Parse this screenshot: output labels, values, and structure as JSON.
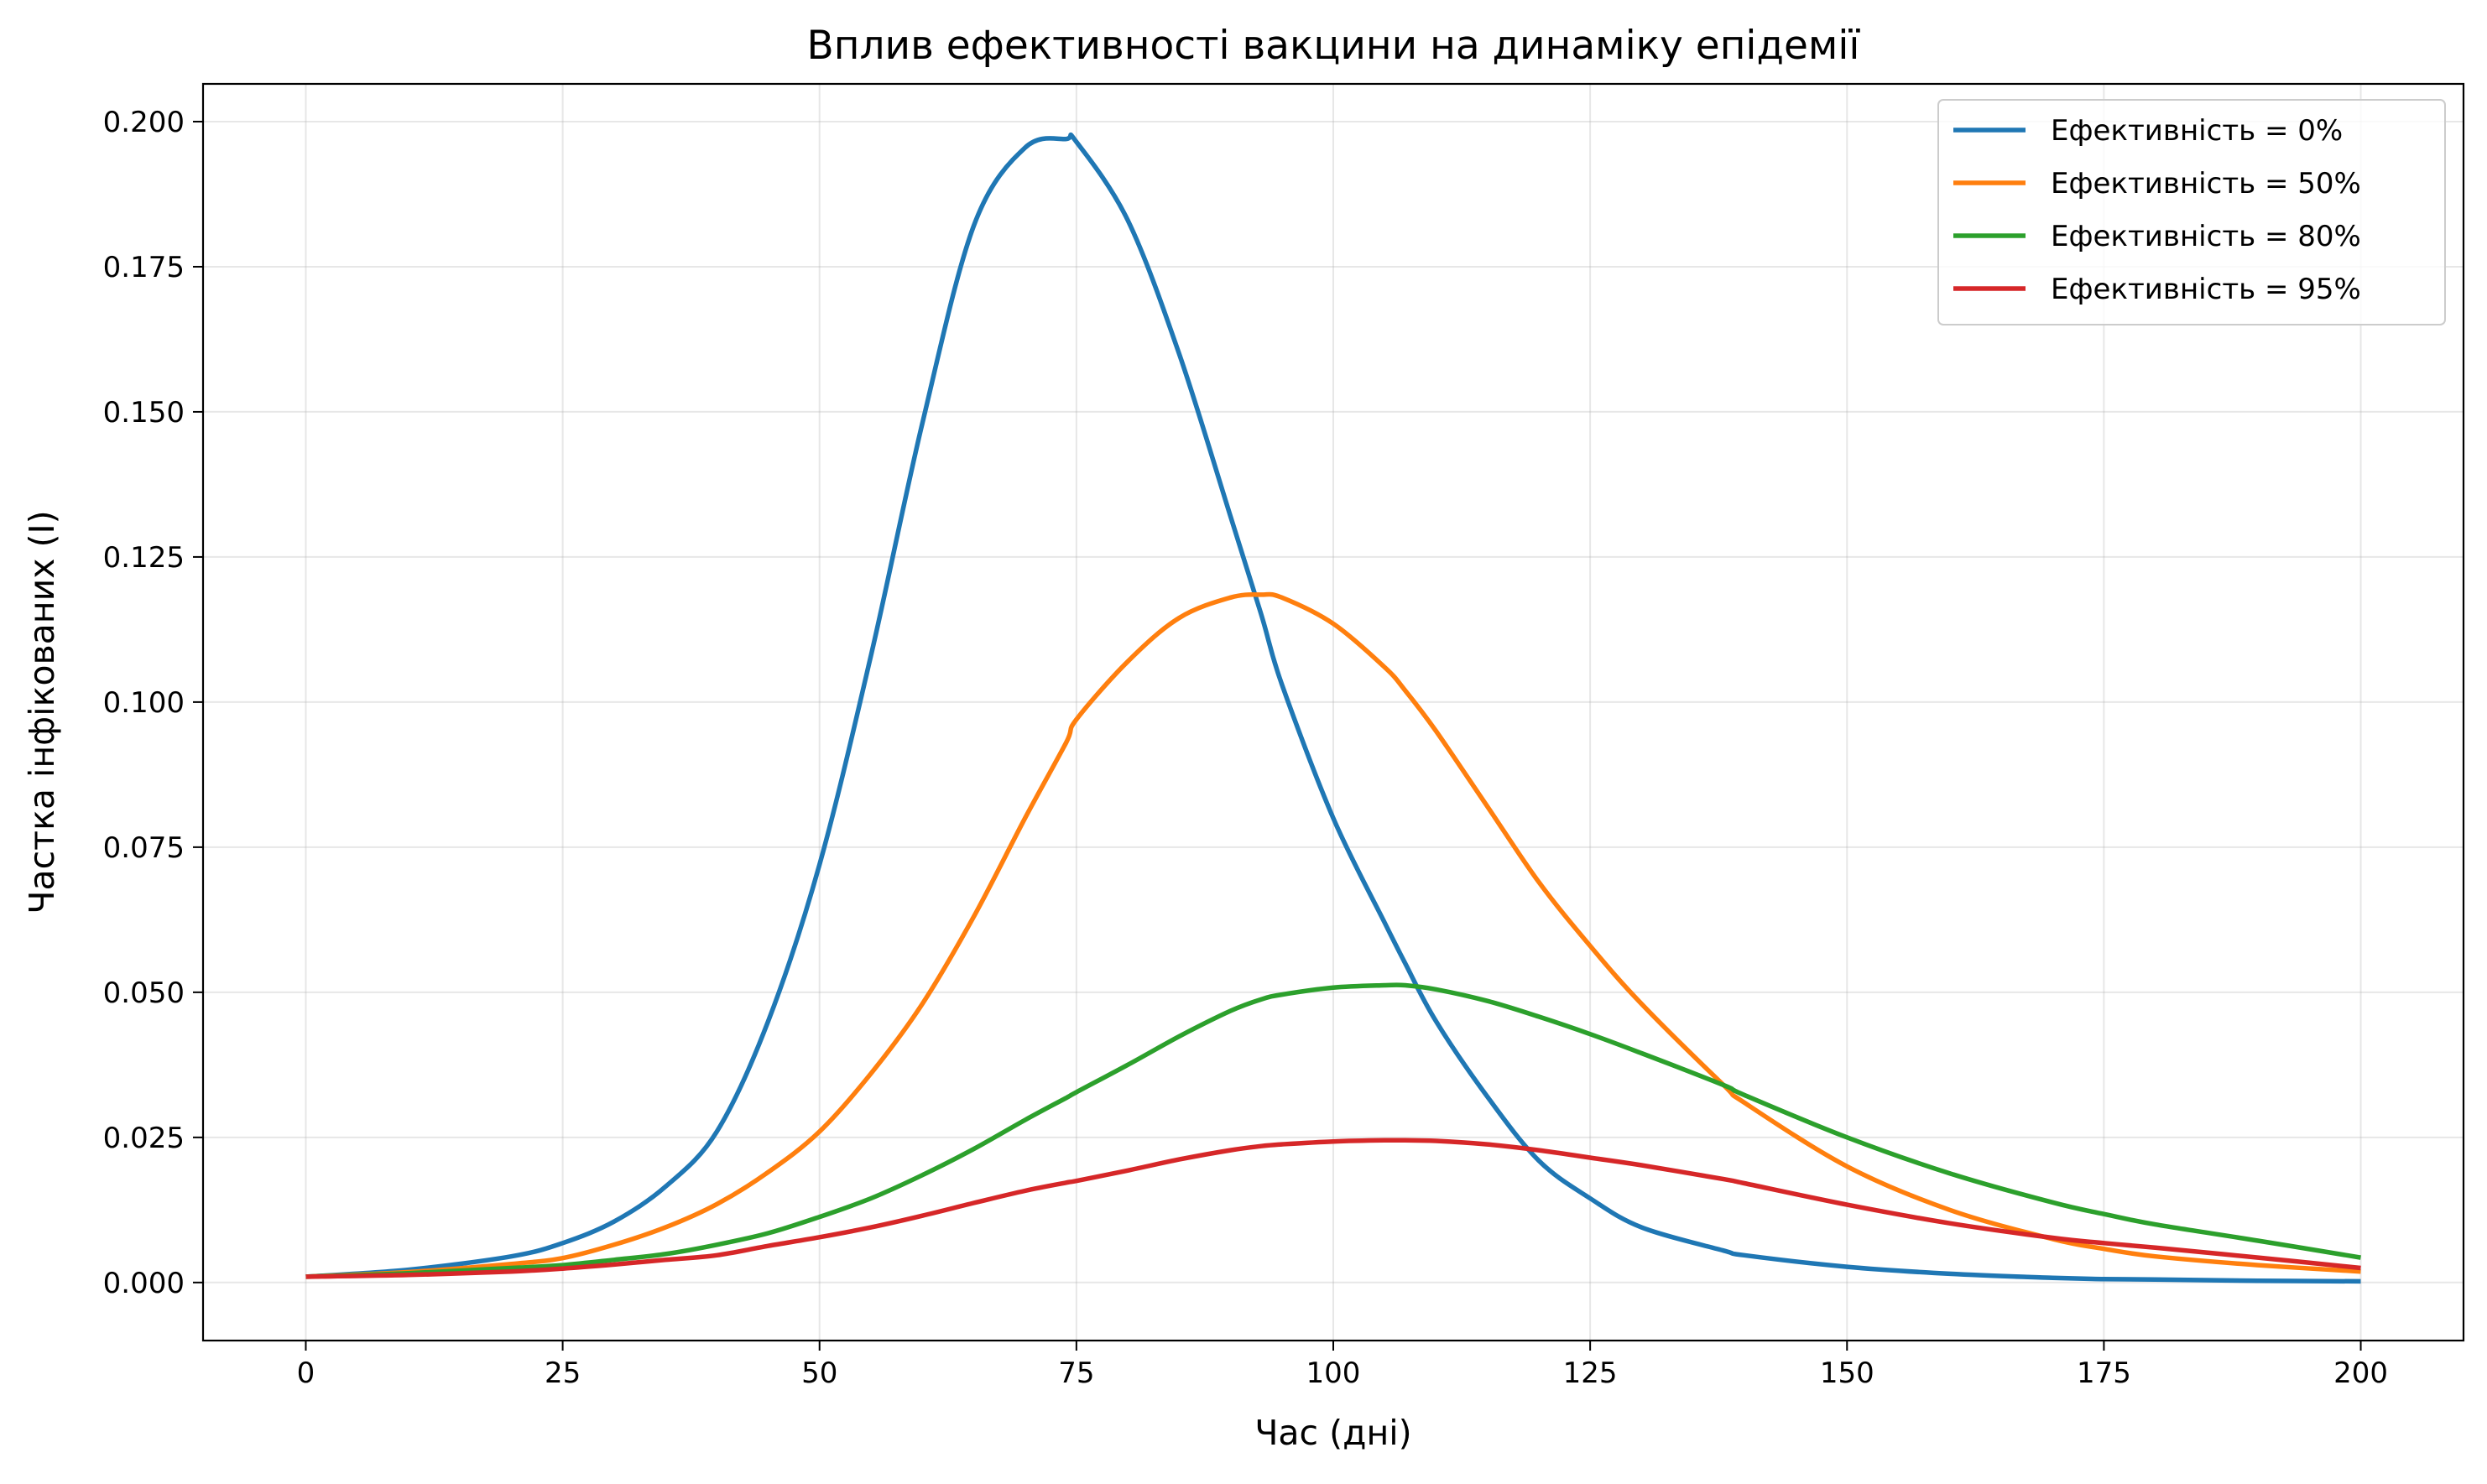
{
  "chart_data": {
    "type": "line",
    "title": "Вплив ефективності вакцини на динаміку епідемії",
    "xlabel": "Час (дні)",
    "ylabel": "Частка інфікованих (I)",
    "xlim": [
      -10,
      210
    ],
    "ylim": [
      -0.01,
      0.2065
    ],
    "xticks": [
      0,
      25,
      50,
      75,
      100,
      125,
      150,
      175,
      200
    ],
    "xtick_labels": [
      "0",
      "25",
      "50",
      "75",
      "100",
      "125",
      "150",
      "175",
      "200"
    ],
    "yticks": [
      0.0,
      0.025,
      0.05,
      0.075,
      0.1,
      0.125,
      0.15,
      0.175,
      0.2
    ],
    "ytick_labels": [
      "0.000",
      "0.025",
      "0.050",
      "0.075",
      "0.100",
      "0.125",
      "0.150",
      "0.175",
      "0.200"
    ],
    "grid": true,
    "legend_position": "top-right",
    "x": [
      0,
      10,
      20,
      25,
      30,
      35,
      40,
      45,
      50,
      55,
      60,
      65,
      70,
      74,
      75,
      80,
      85,
      90,
      93,
      95,
      100,
      105,
      107,
      110,
      115,
      120,
      125,
      130,
      138,
      140,
      150,
      160,
      170,
      175,
      180,
      190,
      200
    ],
    "series": [
      {
        "name": "Ефективність = 0%",
        "color": "#1f77b4",
        "values": [
          0.001,
          0.0022,
          0.0045,
          0.0068,
          0.0105,
          0.0165,
          0.026,
          0.045,
          0.072,
          0.108,
          0.148,
          0.182,
          0.1955,
          0.197,
          0.1965,
          0.183,
          0.16,
          0.132,
          0.115,
          0.103,
          0.08,
          0.062,
          0.055,
          0.045,
          0.032,
          0.021,
          0.0145,
          0.0095,
          0.0055,
          0.0047,
          0.0027,
          0.0015,
          0.0008,
          0.0006,
          0.0005,
          0.0003,
          0.0002
        ]
      },
      {
        "name": "Ефективність = 50%",
        "color": "#ff7f0e",
        "values": [
          0.001,
          0.0018,
          0.0032,
          0.0042,
          0.0065,
          0.0095,
          0.0135,
          0.019,
          0.026,
          0.036,
          0.048,
          0.063,
          0.08,
          0.093,
          0.097,
          0.107,
          0.1145,
          0.118,
          0.1185,
          0.118,
          0.1135,
          0.106,
          0.102,
          0.095,
          0.082,
          0.069,
          0.058,
          0.048,
          0.034,
          0.031,
          0.02,
          0.0125,
          0.0075,
          0.0058,
          0.0045,
          0.003,
          0.0019
        ]
      },
      {
        "name": "Ефективність = 80%",
        "color": "#2ca02c",
        "values": [
          0.001,
          0.0016,
          0.0025,
          0.003,
          0.0039,
          0.0049,
          0.0065,
          0.0085,
          0.0113,
          0.0145,
          0.0185,
          0.023,
          0.028,
          0.0318,
          0.0328,
          0.0375,
          0.0424,
          0.0468,
          0.0488,
          0.0496,
          0.0508,
          0.0512,
          0.0512,
          0.0505,
          0.0485,
          0.0458,
          0.0428,
          0.0395,
          0.034,
          0.0323,
          0.025,
          0.0188,
          0.0138,
          0.0118,
          0.01,
          0.0072,
          0.0043
        ]
      },
      {
        "name": "Ефективність = 95%",
        "color": "#d62728",
        "values": [
          0.001,
          0.0013,
          0.0019,
          0.0024,
          0.0031,
          0.0039,
          0.0047,
          0.0063,
          0.0078,
          0.0095,
          0.0115,
          0.0137,
          0.0158,
          0.0172,
          0.0175,
          0.0193,
          0.0212,
          0.0228,
          0.0235,
          0.0238,
          0.0243,
          0.0245,
          0.0245,
          0.0244,
          0.0238,
          0.0228,
          0.0215,
          0.0202,
          0.0178,
          0.0171,
          0.0134,
          0.0102,
          0.0077,
          0.0068,
          0.006,
          0.0043,
          0.0025
        ]
      }
    ]
  }
}
